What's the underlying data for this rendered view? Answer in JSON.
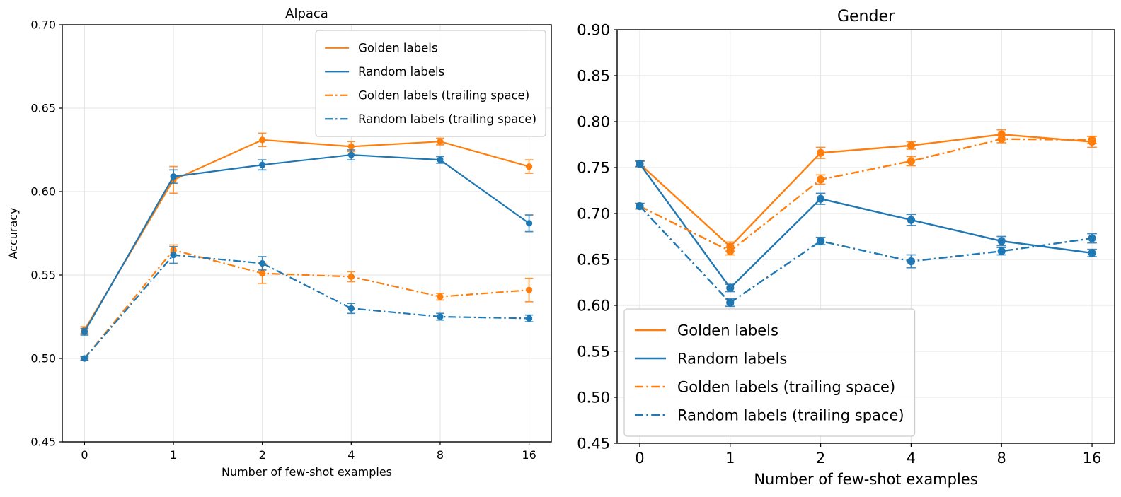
{
  "figure_title": "",
  "colors": {
    "golden": "#ff7f0e",
    "random": "#1f77b4",
    "grid": "#e3e3e3",
    "spine": "#000000",
    "text": "#000000",
    "legend_border": "#cccccc",
    "legend_background": "#ffffff"
  },
  "chart_data": [
    {
      "type": "line",
      "title": "Alpaca",
      "xlabel": "Number of few-shot examples",
      "ylabel": "Accuracy",
      "x_categories": [
        "0",
        "1",
        "2",
        "4",
        "8",
        "16"
      ],
      "ylim": [
        0.45,
        0.7
      ],
      "yticks": [
        0.45,
        0.5,
        0.55,
        0.6,
        0.65,
        0.7
      ],
      "ytick_labels": [
        "0.45",
        "0.50",
        "0.55",
        "0.60",
        "0.65",
        "0.70"
      ],
      "grid": true,
      "legend_position": "upper-right",
      "series": [
        {
          "name": "Golden labels",
          "color": "#ff7f0e",
          "style": "solid",
          "values": [
            0.517,
            0.607,
            0.631,
            0.627,
            0.63,
            0.615
          ],
          "errors": [
            0.002,
            0.008,
            0.004,
            0.003,
            0.002,
            0.004
          ]
        },
        {
          "name": "Random labels",
          "color": "#1f77b4",
          "style": "solid",
          "values": [
            0.516,
            0.609,
            0.616,
            0.622,
            0.619,
            0.581
          ],
          "errors": [
            0.002,
            0.004,
            0.003,
            0.003,
            0.002,
            0.005
          ]
        },
        {
          "name": "Golden labels (trailing space)",
          "color": "#ff7f0e",
          "style": "dashdot",
          "values": [
            0.5,
            0.565,
            0.551,
            0.549,
            0.537,
            0.541
          ],
          "errors": [
            0.001,
            0.003,
            0.006,
            0.003,
            0.002,
            0.007
          ]
        },
        {
          "name": "Random labels (trailing space)",
          "color": "#1f77b4",
          "style": "dashdot",
          "values": [
            0.5,
            0.562,
            0.557,
            0.53,
            0.525,
            0.524
          ],
          "errors": [
            0.001,
            0.005,
            0.004,
            0.003,
            0.002,
            0.002
          ]
        }
      ]
    },
    {
      "type": "line",
      "title": "Gender",
      "xlabel": "Number of few-shot examples",
      "ylabel": "",
      "x_categories": [
        "0",
        "1",
        "2",
        "4",
        "8",
        "16"
      ],
      "ylim": [
        0.45,
        0.9
      ],
      "yticks": [
        0.45,
        0.5,
        0.55,
        0.6,
        0.65,
        0.7,
        0.75,
        0.8,
        0.85,
        0.9
      ],
      "ytick_labels": [
        "0.45",
        "0.50",
        "0.55",
        "0.60",
        "0.65",
        "0.70",
        "0.75",
        "0.80",
        "0.85",
        "0.90"
      ],
      "grid": true,
      "legend_position": "lower-left",
      "series": [
        {
          "name": "Golden labels",
          "color": "#ff7f0e",
          "style": "solid",
          "values": [
            0.754,
            0.664,
            0.766,
            0.774,
            0.786,
            0.778
          ],
          "errors": [
            0.003,
            0.005,
            0.006,
            0.004,
            0.005,
            0.006
          ]
        },
        {
          "name": "Random labels",
          "color": "#1f77b4",
          "style": "solid",
          "values": [
            0.754,
            0.619,
            0.716,
            0.693,
            0.67,
            0.657
          ],
          "errors": [
            0.003,
            0.004,
            0.006,
            0.006,
            0.005,
            0.004
          ]
        },
        {
          "name": "Golden labels (trailing space)",
          "color": "#ff7f0e",
          "style": "dashdot",
          "values": [
            0.708,
            0.659,
            0.737,
            0.757,
            0.781,
            0.78
          ],
          "errors": [
            0.003,
            0.004,
            0.005,
            0.005,
            0.004,
            0.004
          ]
        },
        {
          "name": "Random labels (trailing space)",
          "color": "#1f77b4",
          "style": "dashdot",
          "values": [
            0.708,
            0.603,
            0.67,
            0.648,
            0.659,
            0.673
          ],
          "errors": [
            0.003,
            0.004,
            0.004,
            0.007,
            0.004,
            0.005
          ]
        }
      ]
    }
  ]
}
